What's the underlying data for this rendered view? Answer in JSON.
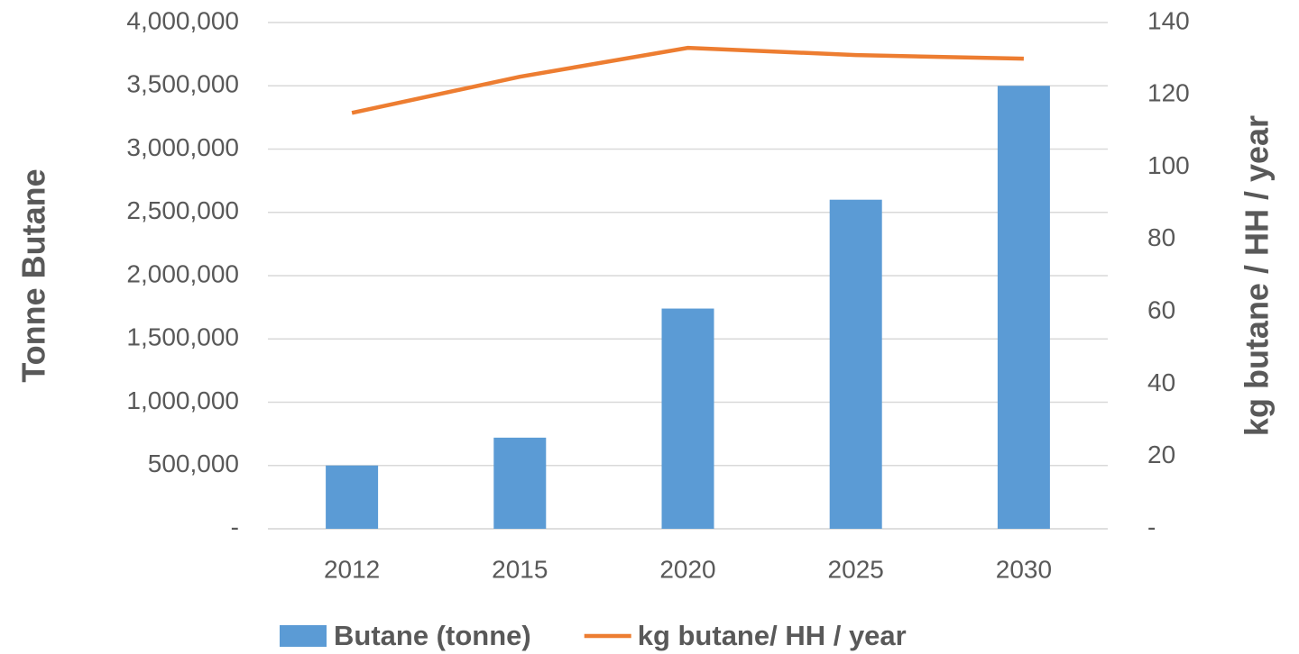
{
  "chart_data": {
    "type": "bar_line",
    "categories": [
      "2012",
      "2015",
      "2020",
      "2025",
      "2030"
    ],
    "series": [
      {
        "name": "Butane (tonne)",
        "color": "#5b9bd5",
        "type": "bar",
        "axis": "y",
        "values": [
          500000,
          720000,
          1740000,
          2600000,
          3500000
        ]
      },
      {
        "name": "kg butane/ HH / year",
        "color": "#ed7d31",
        "type": "line",
        "axis": "y2",
        "values": [
          115,
          125,
          133,
          131,
          130
        ]
      }
    ],
    "ylabel": "Tonne Butane",
    "y2label": "kg butane / HH / year",
    "ylim": [
      0,
      4000000
    ],
    "yticks": [
      {
        "value": 0,
        "label": "-"
      },
      {
        "value": 500000,
        "label": "500,000"
      },
      {
        "value": 1000000,
        "label": "1,000,000"
      },
      {
        "value": 1500000,
        "label": "1,500,000"
      },
      {
        "value": 2000000,
        "label": "2,000,000"
      },
      {
        "value": 2500000,
        "label": "2,500,000"
      },
      {
        "value": 3000000,
        "label": "3,000,000"
      },
      {
        "value": 3500000,
        "label": "3,500,000"
      },
      {
        "value": 4000000,
        "label": "4,000,000"
      }
    ],
    "y2lim": [
      0,
      140
    ],
    "y2ticks": [
      {
        "value": 0,
        "label": "-"
      },
      20,
      40,
      60,
      80,
      100,
      120,
      140
    ],
    "grid": true,
    "legend": "bottom"
  }
}
